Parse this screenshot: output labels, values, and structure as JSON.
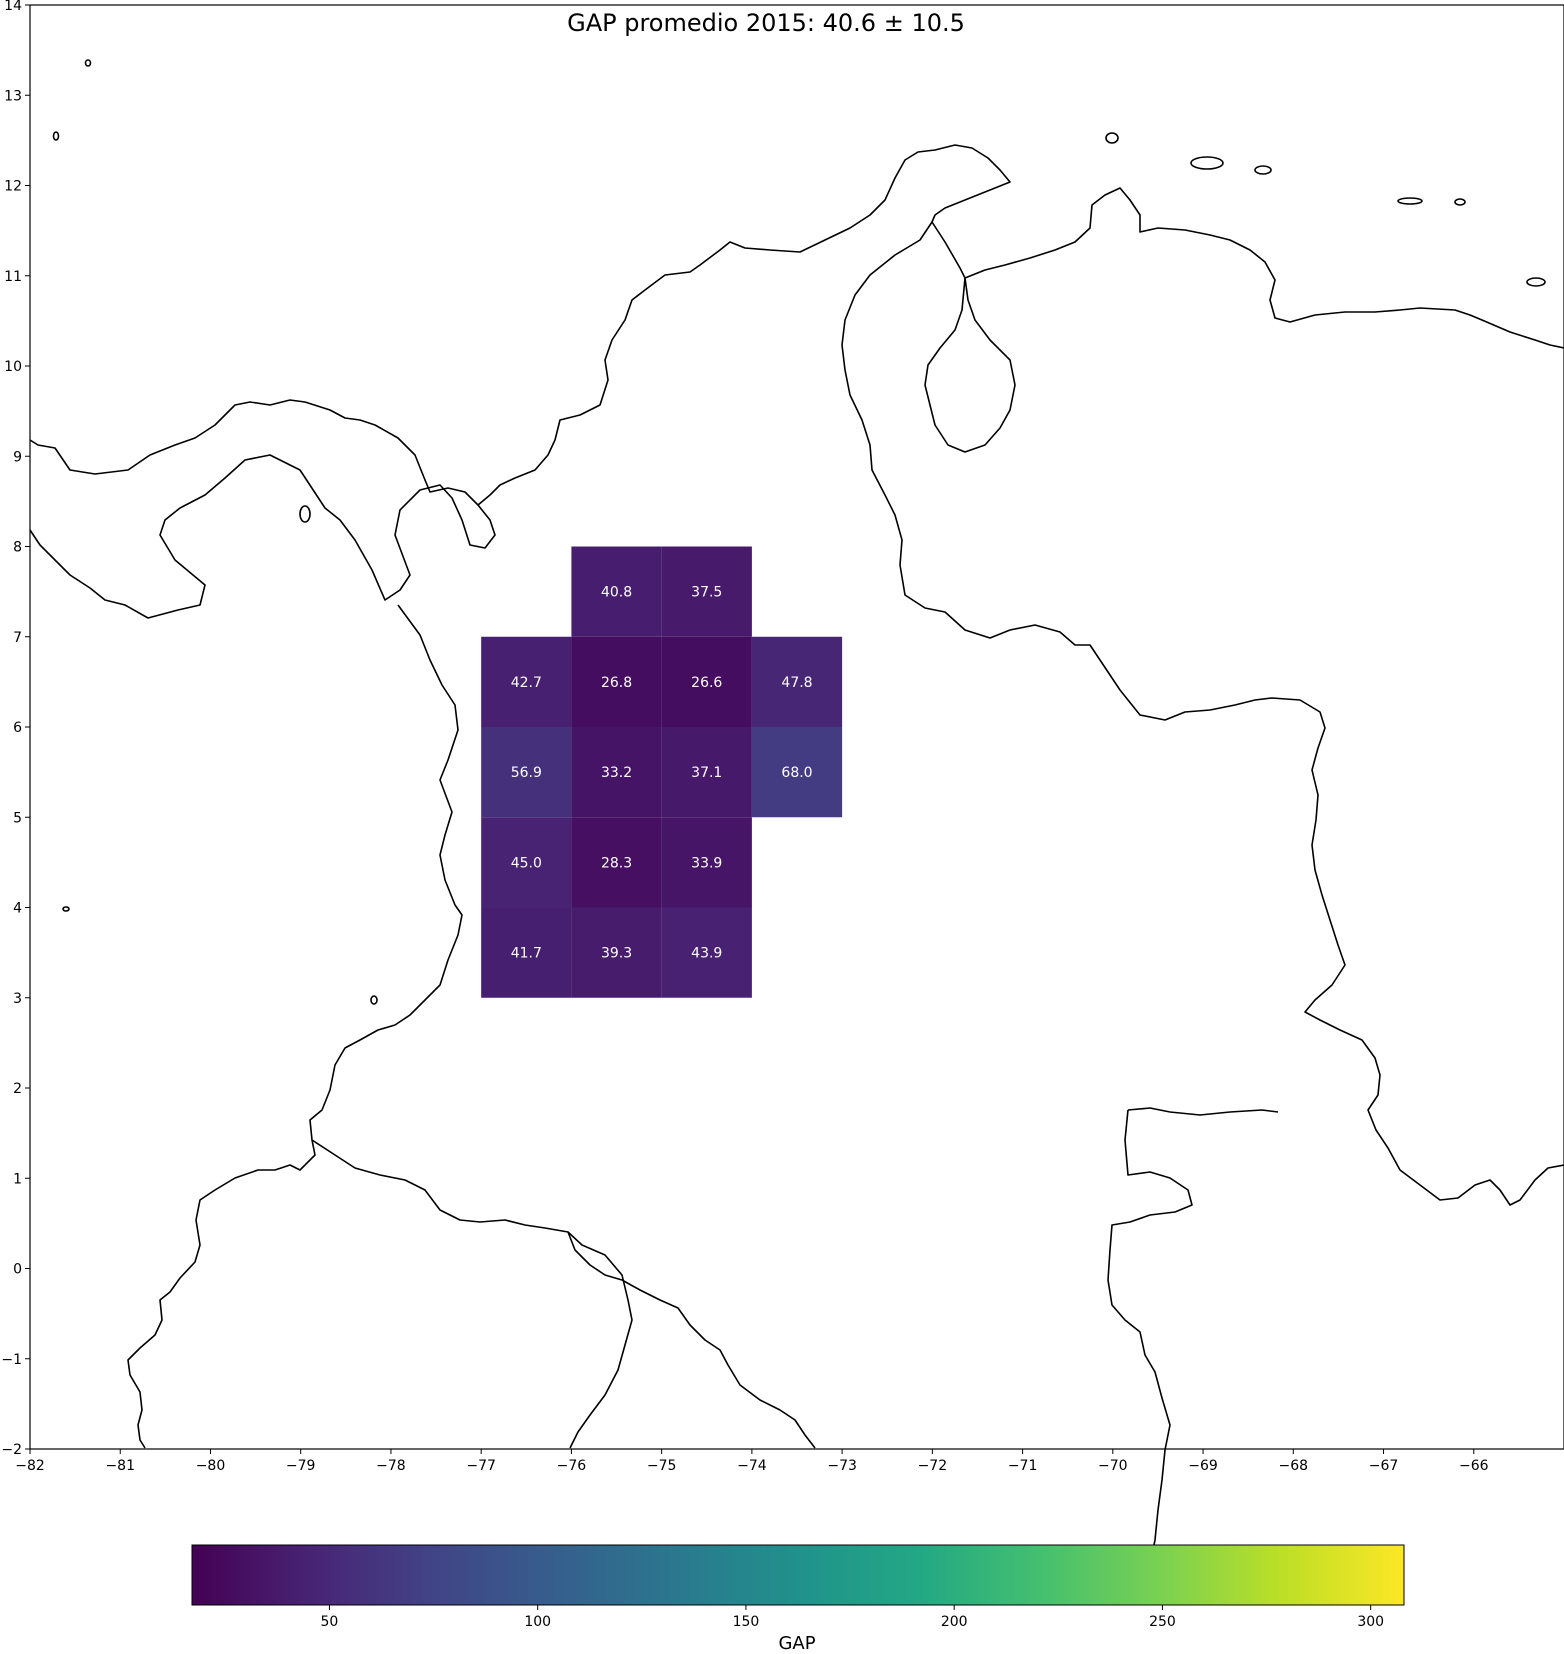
{
  "chart_data": {
    "type": "heatmap",
    "title": "GAP promedio 2015: 40.6 ± 10.5",
    "xlim": [
      -82,
      -65
    ],
    "ylim": [
      -2,
      14
    ],
    "x_ticks": [
      -82,
      -81,
      -80,
      -79,
      -78,
      -77,
      -76,
      -75,
      -74,
      -73,
      -72,
      -71,
      -70,
      -69,
      -68,
      -67,
      -66
    ],
    "y_ticks": [
      -2,
      -1,
      0,
      1,
      2,
      3,
      4,
      5,
      6,
      7,
      8,
      9,
      10,
      11,
      12,
      13,
      14
    ],
    "colormap": "viridis",
    "cells": [
      {
        "lon": -76,
        "lat": 7,
        "value": 40.8,
        "label": "40.8"
      },
      {
        "lon": -75,
        "lat": 7,
        "value": 37.5,
        "label": "37.5"
      },
      {
        "lon": -77,
        "lat": 6,
        "value": 42.7,
        "label": "42.7"
      },
      {
        "lon": -76,
        "lat": 6,
        "value": 26.8,
        "label": "26.8"
      },
      {
        "lon": -75,
        "lat": 6,
        "value": 26.6,
        "label": "26.6"
      },
      {
        "lon": -74,
        "lat": 6,
        "value": 47.8,
        "label": "47.8"
      },
      {
        "lon": -77,
        "lat": 5,
        "value": 56.9,
        "label": "56.9"
      },
      {
        "lon": -76,
        "lat": 5,
        "value": 33.2,
        "label": "33.2"
      },
      {
        "lon": -75,
        "lat": 5,
        "value": 37.1,
        "label": "37.1"
      },
      {
        "lon": -74,
        "lat": 5,
        "value": 68.0,
        "label": "68.0"
      },
      {
        "lon": -77,
        "lat": 4,
        "value": 45.0,
        "label": "45.0"
      },
      {
        "lon": -76,
        "lat": 4,
        "value": 28.3,
        "label": "28.3"
      },
      {
        "lon": -75,
        "lat": 4,
        "value": 33.9,
        "label": "33.9"
      },
      {
        "lon": -77,
        "lat": 3,
        "value": 41.7,
        "label": "41.7"
      },
      {
        "lon": -76,
        "lat": 3,
        "value": 39.3,
        "label": "39.3"
      },
      {
        "lon": -75,
        "lat": 3,
        "value": 43.9,
        "label": "43.9"
      }
    ],
    "cell_size_deg": 1,
    "colorbar": {
      "label": "GAP",
      "range": [
        17,
        308
      ],
      "ticks": [
        50,
        100,
        150,
        200,
        250,
        300
      ],
      "orientation": "horizontal"
    }
  }
}
